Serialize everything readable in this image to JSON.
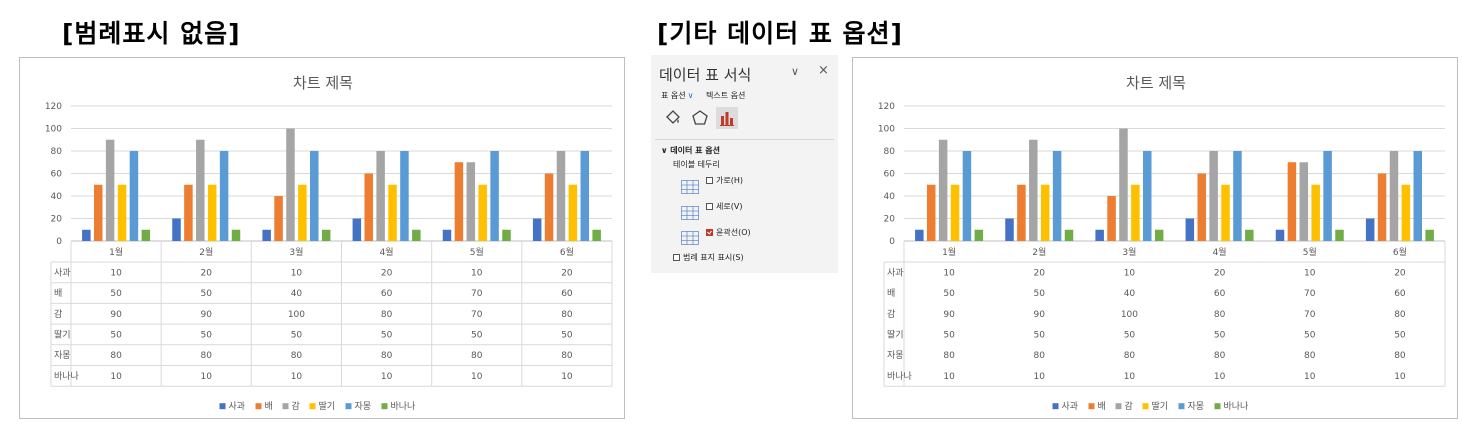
{
  "headings": {
    "left": "[범례표시 없음]",
    "right": "[기타 데이터 표 옵션]"
  },
  "colors": {
    "사과": "#4472c4",
    "배": "#ed7d31",
    "감": "#a5a5a5",
    "딸기": "#ffc000",
    "자몽": "#5b9bd5",
    "바나나": "#70ad47"
  },
  "chart_data": [
    {
      "type": "bar",
      "title": "차트 제목",
      "categories": [
        "1월",
        "2월",
        "3월",
        "4월",
        "5월",
        "6월"
      ],
      "ylim": [
        0,
        120
      ],
      "yticks": [
        0,
        20,
        40,
        60,
        80,
        100,
        120
      ],
      "grid": true,
      "data_table": true,
      "legend": "bottom",
      "series": [
        {
          "name": "사과",
          "values": [
            10,
            20,
            10,
            20,
            10,
            20
          ]
        },
        {
          "name": "배",
          "values": [
            50,
            50,
            40,
            60,
            70,
            60
          ]
        },
        {
          "name": "감",
          "values": [
            90,
            90,
            100,
            80,
            70,
            80
          ]
        },
        {
          "name": "딸기",
          "values": [
            50,
            50,
            50,
            50,
            50,
            50
          ]
        },
        {
          "name": "자몽",
          "values": [
            80,
            80,
            80,
            80,
            80,
            80
          ]
        },
        {
          "name": "바나나",
          "values": [
            10,
            10,
            10,
            10,
            10,
            10
          ]
        }
      ]
    },
    {
      "type": "bar",
      "title": "차트 제목",
      "categories": [
        "1월",
        "2월",
        "3월",
        "4월",
        "5월",
        "6월"
      ],
      "ylim": [
        0,
        120
      ],
      "yticks": [
        0,
        20,
        40,
        60,
        80,
        100,
        120
      ],
      "grid": true,
      "data_table": true,
      "legend": "bottom",
      "series": [
        {
          "name": "사과",
          "values": [
            10,
            20,
            10,
            20,
            10,
            20
          ]
        },
        {
          "name": "배",
          "values": [
            50,
            50,
            40,
            60,
            70,
            60
          ]
        },
        {
          "name": "감",
          "values": [
            90,
            90,
            100,
            80,
            70,
            80
          ]
        },
        {
          "name": "딸기",
          "values": [
            50,
            50,
            50,
            50,
            50,
            50
          ]
        },
        {
          "name": "자몽",
          "values": [
            80,
            80,
            80,
            80,
            80,
            80
          ]
        },
        {
          "name": "바나나",
          "values": [
            10,
            10,
            10,
            10,
            10,
            10
          ]
        }
      ]
    }
  ],
  "panel": {
    "title": "데이터 표 서식",
    "chevron_icon": "chevron-down-icon",
    "close_icon": "close-icon",
    "tab_table_options": "표 옵션",
    "tab_text_options": "텍스트 옵션",
    "icons": [
      "fill-line-icon",
      "effects-icon",
      "table-options-icon"
    ],
    "section_label": "데이터 표 옵션",
    "table_borders_label": "테이블 테두리",
    "options": [
      {
        "label": "가로(H)",
        "checked": false
      },
      {
        "label": "세로(V)",
        "checked": false
      },
      {
        "label": "윤곽선(O)",
        "checked": true
      }
    ],
    "show_legend_keys": {
      "label": "범례 표지 표시(S)",
      "checked": false
    }
  }
}
